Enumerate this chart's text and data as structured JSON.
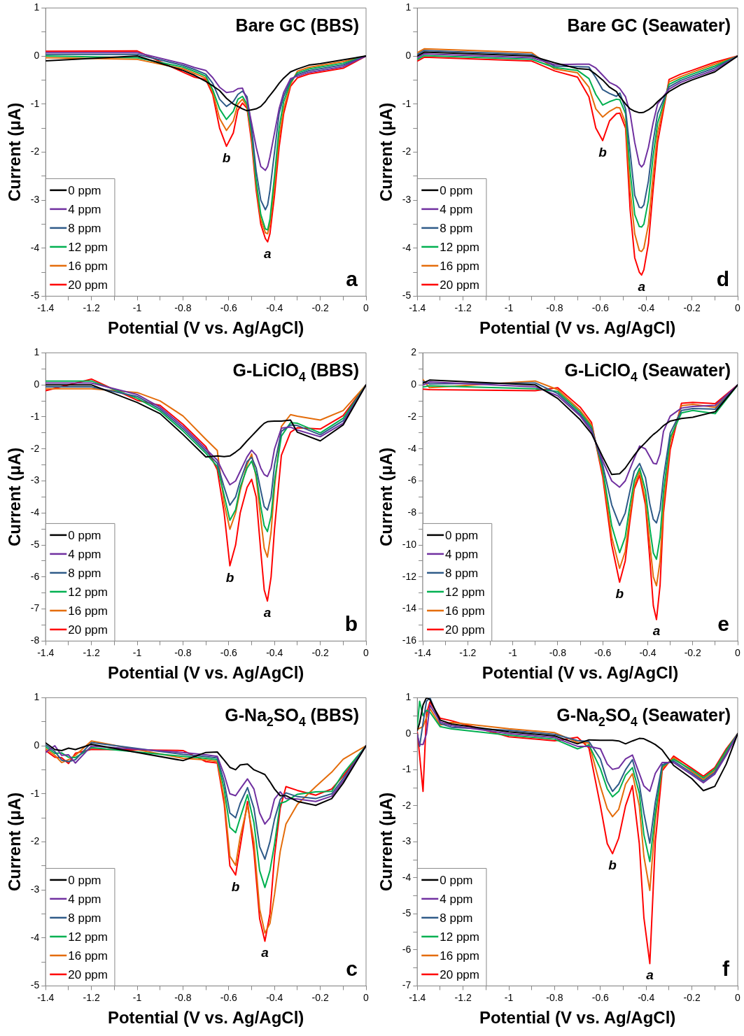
{
  "chart_data": [
    {
      "type": "line",
      "title": "Bare GC (BBS)",
      "xlabel": "Potential (V vs. Ag/AgCl)",
      "ylabel": "Current (μA)",
      "legend": "bottom left",
      "grid": false,
      "line_style": "solid",
      "xlim": [
        -1.4,
        0
      ],
      "xticks": [
        -1.4,
        {
          "value": -1.3,
          "label": null
        },
        -1.2,
        {
          "value": -1.1,
          "label": null
        },
        -1,
        {
          "value": -0.9,
          "label": null
        },
        -0.8,
        {
          "value": -0.7,
          "label": null
        },
        -0.6,
        {
          "value": -0.5,
          "label": null
        },
        -0.4,
        {
          "value": -0.3,
          "label": null
        },
        -0.2,
        {
          "value": -0.1,
          "label": null
        },
        0
      ],
      "ylim": [
        -5,
        1
      ],
      "yticks": [
        1,
        {
          "value": 0.5,
          "label": null
        },
        0,
        {
          "value": -0.5,
          "label": null
        },
        -1,
        {
          "value": -1.5,
          "label": null
        },
        -2,
        {
          "value": -2.5,
          "label": null
        },
        -3,
        {
          "value": -3.5,
          "label": null
        },
        -4,
        {
          "value": -4.5,
          "label": null
        },
        -5
      ],
      "x": [
        -1.4,
        -1.0,
        -0.8,
        -0.75,
        -0.7,
        -0.67,
        -0.64,
        -0.61,
        -0.58,
        -0.56,
        -0.54,
        -0.52,
        -0.5,
        -0.48,
        -0.46,
        -0.44,
        -0.43,
        -0.42,
        -0.4,
        -0.38,
        -0.36,
        -0.33,
        -0.3,
        -0.25,
        -0.2,
        -0.1,
        0
      ],
      "series": [
        {
          "name": "0 ppm",
          "color": "#000000",
          "values": [
            -0.1,
            0,
            -0.3,
            -0.4,
            -0.53,
            -0.62,
            -0.72,
            -0.88,
            -1.0,
            -1.05,
            -1.1,
            -1.14,
            -1.12,
            -1.1,
            -1.05,
            -0.95,
            -0.88,
            -0.82,
            -0.7,
            -0.57,
            -0.46,
            -0.33,
            -0.27,
            -0.19,
            -0.16,
            -0.08,
            0
          ]
        },
        {
          "name": "4 ppm",
          "color": "#7030a0",
          "values": [
            0.07,
            0.07,
            -0.16,
            -0.24,
            -0.3,
            -0.45,
            -0.65,
            -0.76,
            -0.74,
            -0.68,
            -0.67,
            -0.92,
            -1.4,
            -1.9,
            -2.3,
            -2.38,
            -2.3,
            -2.1,
            -1.6,
            -1.1,
            -0.76,
            -0.47,
            -0.42,
            -0.34,
            -0.3,
            -0.22,
            0
          ]
        },
        {
          "name": "8 ppm",
          "color": "#2e5a88",
          "values": [
            0.035,
            0.035,
            -0.195,
            -0.28,
            -0.38,
            -0.57,
            -0.9,
            -1.05,
            -0.95,
            -0.8,
            -0.73,
            -0.85,
            -1.5,
            -2.4,
            -3.0,
            -3.2,
            -3.1,
            -2.8,
            -2.0,
            -1.2,
            -0.84,
            -0.51,
            -0.385,
            -0.305,
            -0.265,
            -0.185,
            0
          ]
        },
        {
          "name": "12 ppm",
          "color": "#00b050",
          "values": [
            0,
            -0.035,
            -0.23,
            -0.32,
            -0.42,
            -0.7,
            -1.1,
            -1.32,
            -1.15,
            -0.9,
            -0.84,
            -1.0,
            -1.6,
            -2.6,
            -3.3,
            -3.6,
            -3.62,
            -3.4,
            -2.5,
            -1.5,
            -0.95,
            -0.55,
            -0.35,
            -0.27,
            -0.23,
            -0.15,
            0
          ]
        },
        {
          "name": "16 ppm",
          "color": "#e46c0a",
          "values": [
            -0.035,
            -0.07,
            -0.265,
            -0.36,
            -0.46,
            -0.75,
            -1.3,
            -1.55,
            -1.35,
            -1.0,
            -0.9,
            -1.05,
            -1.7,
            -2.7,
            -3.4,
            -3.68,
            -3.7,
            -3.5,
            -2.7,
            -1.7,
            -1.1,
            -0.59,
            -0.315,
            -0.235,
            -0.195,
            -0.115,
            0
          ]
        },
        {
          "name": "20 ppm",
          "color": "#ff0000",
          "values": [
            0.1,
            0.105,
            -0.335,
            -0.44,
            -0.49,
            -0.8,
            -1.5,
            -1.88,
            -1.6,
            -1.13,
            -0.98,
            -1.09,
            -1.8,
            -2.8,
            -3.5,
            -3.8,
            -3.87,
            -3.7,
            -2.9,
            -1.9,
            -1.2,
            -0.63,
            -0.455,
            -0.375,
            -0.335,
            -0.255,
            0
          ]
        }
      ],
      "annotations": [
        {
          "text": "b",
          "x": -0.61,
          "y": -1.88
        },
        {
          "text": "a",
          "x": -0.43,
          "y": -3.87
        },
        "a"
      ]
    },
    {
      "type": "line",
      "title": "Bare GC (Seawater)",
      "xlabel": "Potential (V vs. Ag/AgCl)",
      "ylabel": "Current (μA)",
      "legend": "bottom left",
      "grid": false,
      "line_style": "solid",
      "xlim": [
        -1.4,
        0
      ],
      "xticks": [
        -1.4,
        {
          "value": -1.3,
          "label": null
        },
        -1.2,
        {
          "value": -1.1,
          "label": null
        },
        -1,
        {
          "value": -0.9,
          "label": null
        },
        -0.8,
        {
          "value": -0.7,
          "label": null
        },
        -0.6,
        {
          "value": -0.5,
          "label": null
        },
        -0.4,
        {
          "value": -0.3,
          "label": null
        },
        -0.2,
        {
          "value": -0.1,
          "label": null
        },
        0
      ],
      "ylim": [
        -5,
        1
      ],
      "yticks": [
        1,
        {
          "value": 0.5,
          "label": null
        },
        0,
        {
          "value": -0.5,
          "label": null
        },
        -1,
        {
          "value": -1.5,
          "label": null
        },
        -2,
        {
          "value": -2.5,
          "label": null
        },
        -3,
        {
          "value": -3.5,
          "label": null
        },
        -4,
        {
          "value": -4.5,
          "label": null
        },
        -5
      ],
      "x": [
        -1.4,
        -1.37,
        -0.9,
        -0.8,
        -0.7,
        -0.65,
        -0.62,
        -0.59,
        -0.56,
        -0.53,
        -0.515,
        -0.49,
        -0.47,
        -0.45,
        -0.43,
        -0.42,
        -0.41,
        -0.39,
        -0.37,
        -0.35,
        -0.3,
        -0.25,
        -0.2,
        -0.1,
        0
      ],
      "series": [
        {
          "name": "0 ppm",
          "color": "#000000",
          "values": [
            0,
            0.08,
            0,
            -0.14,
            -0.26,
            -0.28,
            -0.38,
            -0.5,
            -0.65,
            -0.74,
            -0.85,
            -1.0,
            -1.1,
            -1.15,
            -1.18,
            -1.18,
            -1.17,
            -1.12,
            -1.05,
            -0.95,
            -0.74,
            -0.6,
            -0.5,
            -0.33,
            0
          ]
        },
        {
          "name": "4 ppm",
          "color": "#7030a0",
          "values": [
            -0.035,
            0.045,
            -0.035,
            -0.18,
            -0.17,
            -0.17,
            -0.25,
            -0.4,
            -0.55,
            -0.62,
            -0.68,
            -0.85,
            -1.2,
            -1.8,
            -2.25,
            -2.31,
            -2.25,
            -1.9,
            -1.4,
            -1.0,
            -0.69,
            -0.55,
            -0.46,
            -0.29,
            0
          ]
        },
        {
          "name": "8 ppm",
          "color": "#2e5a88",
          "values": [
            0.035,
            0.115,
            0.035,
            -0.21,
            -0.22,
            -0.23,
            -0.45,
            -0.7,
            -0.78,
            -0.84,
            -0.77,
            -1.1,
            -2.0,
            -2.9,
            -3.15,
            -3.16,
            -3.1,
            -2.6,
            -1.8,
            -1.2,
            -0.64,
            -0.51,
            -0.42,
            -0.25,
            0
          ]
        },
        {
          "name": "12 ppm",
          "color": "#00b050",
          "values": [
            -0.07,
            0.01,
            -0.07,
            -0.24,
            -0.3,
            -0.47,
            -0.8,
            -1.02,
            -0.95,
            -0.9,
            -0.91,
            -1.2,
            -2.4,
            -3.3,
            -3.55,
            -3.56,
            -3.5,
            -3.0,
            -2.1,
            -1.4,
            -0.59,
            -0.47,
            -0.38,
            -0.21,
            0
          ]
        },
        {
          "name": "16 ppm",
          "color": "#e46c0a",
          "values": [
            0.07,
            0.15,
            0.07,
            -0.27,
            -0.35,
            -0.65,
            -1.1,
            -1.27,
            -1.15,
            -1.07,
            -1.08,
            -1.4,
            -2.8,
            -3.7,
            -4.05,
            -4.07,
            -4.0,
            -3.5,
            -2.5,
            -1.6,
            -0.54,
            -0.43,
            -0.34,
            -0.17,
            0
          ]
        },
        {
          "name": "20 ppm",
          "color": "#ff0000",
          "values": [
            -0.105,
            -0.025,
            -0.105,
            -0.31,
            -0.44,
            -0.85,
            -1.5,
            -1.76,
            -1.35,
            -1.2,
            -1.19,
            -1.5,
            -3.2,
            -4.2,
            -4.5,
            -4.56,
            -4.45,
            -3.9,
            -2.8,
            -1.8,
            -0.49,
            -0.38,
            -0.3,
            -0.13,
            0
          ]
        }
      ],
      "annotations": [
        {
          "text": "b",
          "x": -0.59,
          "y": -1.76
        },
        {
          "text": "a",
          "x": -0.42,
          "y": -4.56
        },
        "d"
      ]
    },
    {
      "type": "line",
      "title": "G-LiClO$_{4}$ (BBS)",
      "xlabel": "Potential (V vs. Ag/AgCl)",
      "ylabel": "Current (μA)",
      "legend": "bottom left",
      "grid": false,
      "line_style": "solid",
      "xlim": [
        -1.4,
        0
      ],
      "xticks": [
        -1.4,
        {
          "value": -1.3,
          "label": null
        },
        -1.2,
        {
          "value": -1.1,
          "label": null
        },
        -1,
        {
          "value": -0.9,
          "label": null
        },
        -0.8,
        {
          "value": -0.7,
          "label": null
        },
        -0.6,
        {
          "value": -0.5,
          "label": null
        },
        -0.4,
        {
          "value": -0.3,
          "label": null
        },
        -0.2,
        {
          "value": -0.1,
          "label": null
        },
        0
      ],
      "ylim": [
        -8,
        1
      ],
      "yticks": [
        1,
        {
          "value": 0.5,
          "label": null
        },
        0,
        {
          "value": -0.5,
          "label": null
        },
        -1,
        {
          "value": -1.5,
          "label": null
        },
        -2,
        {
          "value": -2.5,
          "label": null
        },
        -3,
        {
          "value": -3.5,
          "label": null
        },
        -4,
        {
          "value": -4.5,
          "label": null
        },
        -5,
        {
          "value": -5.5,
          "label": null
        },
        -6,
        {
          "value": -6.5,
          "label": null
        },
        -7,
        {
          "value": -7.5,
          "label": null
        },
        -8
      ],
      "x": [
        -1.4,
        -1.2,
        -1.0,
        -0.9,
        -0.8,
        -0.7,
        -0.65,
        -0.62,
        -0.595,
        -0.57,
        -0.55,
        -0.52,
        -0.5,
        -0.48,
        -0.46,
        -0.445,
        -0.431,
        -0.415,
        -0.4,
        -0.37,
        -0.33,
        -0.3,
        -0.2,
        -0.1,
        0
      ],
      "series": [
        {
          "name": "0 ppm",
          "color": "#000000",
          "values": [
            0,
            0,
            -0.55,
            -0.9,
            -1.55,
            -2.25,
            -2.22,
            -2.24,
            -2.22,
            -2.1,
            -1.99,
            -1.75,
            -1.6,
            -1.45,
            -1.3,
            -1.2,
            -1.15,
            -1.14,
            -1.13,
            -1.13,
            -1.1,
            -1.48,
            -1.75,
            -1.25,
            0
          ]
        },
        {
          "name": "4 ppm",
          "color": "#7030a0",
          "values": [
            0.06,
            0.06,
            -0.3,
            -0.7,
            -1.3,
            -2.0,
            -2.35,
            -2.8,
            -3.12,
            -3.0,
            -2.7,
            -2.25,
            -2.04,
            -2.2,
            -2.6,
            -2.8,
            -2.86,
            -2.6,
            -2.0,
            -1.35,
            -1.32,
            -1.41,
            -1.62,
            -1.2,
            0
          ]
        },
        {
          "name": "8 ppm",
          "color": "#2e5a88",
          "values": [
            -0.06,
            -0.06,
            -0.36,
            -0.76,
            -1.37,
            -2.07,
            -2.45,
            -3.2,
            -3.76,
            -3.5,
            -3.0,
            -2.4,
            -2.26,
            -2.6,
            -3.3,
            -3.8,
            -3.91,
            -3.5,
            -2.5,
            -1.45,
            -1.25,
            -1.27,
            -1.56,
            -1.12,
            0
          ]
        },
        {
          "name": "12 ppm",
          "color": "#00b050",
          "values": [
            0.12,
            0.12,
            -0.42,
            -0.82,
            -1.44,
            -2.14,
            -2.55,
            -3.45,
            -4.23,
            -3.9,
            -3.2,
            -2.6,
            -2.38,
            -2.8,
            -3.8,
            -4.4,
            -4.58,
            -4.1,
            -3.0,
            -1.6,
            -1.18,
            -1.2,
            -1.5,
            -1.04,
            0
          ]
        },
        {
          "name": "16 ppm",
          "color": "#e46c0a",
          "values": [
            -0.12,
            -0.12,
            -0.24,
            -0.5,
            -0.97,
            -1.7,
            -2.05,
            -3.7,
            -4.51,
            -4.0,
            -3.3,
            -2.5,
            -2.16,
            -2.9,
            -4.2,
            -5.1,
            -5.38,
            -4.6,
            -3.2,
            -1.3,
            -0.93,
            -0.98,
            -1.1,
            -0.8,
            0
          ]
        },
        {
          "name": "20 ppm",
          "color": "#ff0000",
          "values": [
            -0.18,
            0.18,
            -0.48,
            -0.64,
            -1.23,
            -1.93,
            -2.65,
            -4.0,
            -5.65,
            -5.0,
            -4.0,
            -3.2,
            -2.95,
            -3.5,
            -5.2,
            -6.4,
            -6.75,
            -6.0,
            -4.5,
            -2.2,
            -1.48,
            -1.34,
            -1.38,
            -0.96,
            0
          ]
        }
      ],
      "annotations": [
        {
          "text": "b",
          "x": -0.595,
          "y": -5.65
        },
        {
          "text": "a",
          "x": -0.431,
          "y": -6.75
        },
        "b"
      ]
    },
    {
      "type": "line",
      "title": "G-LiClO$_{4}$ (Seawater)",
      "xlabel": "Potential (V vs. Ag/AgCl)",
      "ylabel": "Current (μA)",
      "legend": "bottom left",
      "grid": false,
      "line_style": "solid",
      "xlim": [
        -1.4,
        0
      ],
      "xticks": [
        -1.4,
        {
          "value": -1.3,
          "label": null
        },
        -1.2,
        {
          "value": -1.1,
          "label": null
        },
        -1,
        {
          "value": -0.9,
          "label": null
        },
        -0.8,
        {
          "value": -0.7,
          "label": null
        },
        -0.6,
        {
          "value": -0.5,
          "label": null
        },
        -0.4,
        {
          "value": -0.3,
          "label": null
        },
        -0.2,
        {
          "value": -0.1,
          "label": null
        },
        0
      ],
      "ylim": [
        -16,
        2
      ],
      "yticks": [
        2,
        {
          "value": 1,
          "label": null
        },
        0,
        {
          "value": -1,
          "label": null
        },
        -2,
        {
          "value": -3,
          "label": null
        },
        -4,
        {
          "value": -5,
          "label": null
        },
        -6,
        {
          "value": -7,
          "label": null
        },
        -8,
        {
          "value": -9,
          "label": null
        },
        -10,
        {
          "value": -11,
          "label": null
        },
        -12,
        {
          "value": -13,
          "label": null
        },
        -14,
        {
          "value": -15,
          "label": null
        },
        -16
      ],
      "x": [
        -1.4,
        -1.37,
        -0.9,
        -0.8,
        -0.7,
        -0.65,
        -0.6,
        -0.56,
        -0.525,
        -0.5,
        -0.48,
        -0.46,
        -0.436,
        -0.41,
        -0.39,
        -0.375,
        -0.361,
        -0.345,
        -0.33,
        -0.3,
        -0.25,
        -0.2,
        -0.1,
        0
      ],
      "series": [
        {
          "name": "0 ppm",
          "color": "#000000",
          "values": [
            0.1,
            0.3,
            0,
            -0.85,
            -2.18,
            -3.04,
            -4.5,
            -5.6,
            -5.55,
            -5.2,
            -4.8,
            -4.4,
            -3.97,
            -3.6,
            -3.3,
            -3.1,
            -2.95,
            -2.75,
            -2.55,
            -2.26,
            -2.1,
            -2.02,
            -1.68,
            0
          ]
        },
        {
          "name": "4 ppm",
          "color": "#7030a0",
          "values": [
            -0.02,
            0.18,
            -0.12,
            -0.68,
            -1.95,
            -2.9,
            -4.75,
            -6.0,
            -6.39,
            -6.0,
            -5.3,
            -4.6,
            -3.82,
            -4.0,
            -4.5,
            -4.9,
            -4.94,
            -4.3,
            -2.9,
            -1.95,
            -1.45,
            -1.35,
            -1.28,
            0
          ]
        },
        {
          "name": "8 ppm",
          "color": "#2e5a88",
          "values": [
            0.22,
            0.06,
            0.12,
            -0.54,
            -1.85,
            -2.75,
            -5.0,
            -7.5,
            -8.78,
            -8.0,
            -6.7,
            -5.4,
            -4.91,
            -5.8,
            -7.5,
            -8.4,
            -8.62,
            -7.8,
            -5.8,
            -3.0,
            -1.6,
            -1.48,
            -1.52,
            0
          ]
        },
        {
          "name": "12 ppm",
          "color": "#00b050",
          "values": [
            -0.14,
            -0.06,
            -0.24,
            -0.42,
            -1.72,
            -2.62,
            -5.25,
            -8.8,
            -10.48,
            -9.5,
            -7.6,
            -6.0,
            -5.2,
            -6.6,
            -9.0,
            -10.5,
            -10.89,
            -9.5,
            -6.7,
            -3.3,
            -1.75,
            -1.6,
            -1.8,
            0
          ]
        },
        {
          "name": "16 ppm",
          "color": "#e46c0a",
          "values": [
            0.34,
            -0.18,
            0.24,
            -0.3,
            -1.6,
            -2.5,
            -5.5,
            -9.5,
            -11.46,
            -10.4,
            -8.2,
            -6.3,
            -5.4,
            -7.2,
            -10.0,
            -12.0,
            -12.55,
            -11.0,
            -7.5,
            -3.6,
            -1.3,
            -1.22,
            -1.4,
            0
          ]
        },
        {
          "name": "20 ppm",
          "color": "#ff0000",
          "values": [
            -0.26,
            -0.3,
            -0.36,
            -0.18,
            -1.4,
            -2.34,
            -5.75,
            -10.0,
            -12.32,
            -11.0,
            -8.6,
            -6.5,
            -5.65,
            -7.5,
            -11.0,
            -13.8,
            -14.66,
            -12.5,
            -8.0,
            -4.05,
            -1.15,
            -1.1,
            -1.17,
            0
          ]
        }
      ],
      "annotations": [
        {
          "text": "b",
          "x": -0.525,
          "y": -12.32
        },
        {
          "text": "a",
          "x": -0.361,
          "y": -14.66
        },
        "e"
      ]
    },
    {
      "type": "line",
      "title": "G-Na$_{2}$SO$_{4}$ (BBS)",
      "xlabel": "Potential (V vs. Ag/AgCl)",
      "ylabel": "Current (μA)",
      "legend": "bottom left",
      "grid": false,
      "line_style": "solid",
      "xlim": [
        -1.4,
        0
      ],
      "xticks": [
        -1.4,
        {
          "value": -1.3,
          "label": null
        },
        -1.2,
        {
          "value": -1.1,
          "label": null
        },
        -1,
        {
          "value": -0.9,
          "label": null
        },
        -0.8,
        {
          "value": -0.7,
          "label": null
        },
        -0.6,
        {
          "value": -0.5,
          "label": null
        },
        -0.4,
        {
          "value": -0.3,
          "label": null
        },
        -0.2,
        {
          "value": -0.1,
          "label": null
        },
        0
      ],
      "ylim": [
        -5,
        1
      ],
      "yticks": [
        1,
        {
          "value": 0.5,
          "label": null
        },
        0,
        {
          "value": -0.5,
          "label": null
        },
        -1,
        {
          "value": -1.5,
          "label": null
        },
        -2,
        {
          "value": -2.5,
          "label": null
        },
        -3,
        {
          "value": -3.5,
          "label": null
        },
        -4,
        {
          "value": -4.5,
          "label": null
        },
        -5
      ],
      "x": [
        -1.4,
        -1.36,
        -1.33,
        -1.3,
        -1.27,
        -1.2,
        -0.8,
        -0.7,
        -0.65,
        -0.62,
        -0.595,
        -0.57,
        -0.55,
        -0.518,
        -0.49,
        -0.465,
        -0.442,
        -0.42,
        -0.4,
        -0.375,
        -0.35,
        -0.3,
        -0.22,
        -0.15,
        -0.1,
        0
      ],
      "series": [
        {
          "name": "0 ppm",
          "color": "#000000",
          "values": [
            0.06,
            -0.08,
            -0.1,
            -0.05,
            -0.08,
            0.03,
            -0.31,
            -0.14,
            -0.13,
            -0.3,
            -0.45,
            -0.5,
            -0.4,
            -0.38,
            -0.5,
            -0.55,
            -0.6,
            -0.75,
            -0.9,
            -1.04,
            -1.04,
            -1.16,
            -1.24,
            -1.1,
            -0.78,
            0
          ]
        },
        {
          "name": "4 ppm",
          "color": "#7030a0",
          "values": [
            -0.14,
            0,
            -0.2,
            -0.19,
            -0.36,
            -0.005,
            -0.14,
            -0.19,
            -0.22,
            -0.6,
            -1.0,
            -1.04,
            -0.9,
            -0.69,
            -0.9,
            -1.4,
            -1.63,
            -1.5,
            -1.11,
            -0.96,
            -1.1,
            -1.11,
            -1.16,
            -1.05,
            -0.73,
            0
          ]
        },
        {
          "name": "8 ppm",
          "color": "#2e5a88",
          "values": [
            0.02,
            -0.12,
            -0.3,
            -0.33,
            -0.29,
            0.065,
            -0.18,
            -0.225,
            -0.255,
            -0.75,
            -1.4,
            -1.5,
            -1.2,
            -0.87,
            -1.3,
            -2.1,
            -2.36,
            -2.0,
            -1.53,
            -1.12,
            -0.98,
            -1.06,
            -1.1,
            -1.0,
            -0.68,
            0
          ]
        },
        {
          "name": "12 ppm",
          "color": "#00b050",
          "values": [
            -0.02,
            -0.16,
            -0.15,
            -0.24,
            -0.245,
            -0.04,
            -0.22,
            -0.26,
            -0.29,
            -0.9,
            -1.7,
            -1.81,
            -1.5,
            -1.02,
            -1.6,
            -2.6,
            -2.95,
            -2.6,
            -2.05,
            -1.2,
            -1.16,
            -1.01,
            -0.96,
            -0.95,
            -0.58,
            0
          ]
        },
        {
          "name": "16 ppm",
          "color": "#e46c0a",
          "values": [
            -0.06,
            -0.2,
            -0.35,
            -0.29,
            -0.2,
            0.1,
            -0.26,
            -0.295,
            -0.325,
            -1.1,
            -2.3,
            -2.49,
            -1.9,
            -1.24,
            -2.0,
            -3.4,
            -3.9,
            -3.7,
            -3.1,
            -2.2,
            -1.63,
            -1.22,
            -0.85,
            -0.55,
            -0.28,
            0
          ]
        },
        {
          "name": "20 ppm",
          "color": "#ff0000",
          "values": [
            -0.1,
            -0.24,
            -0.25,
            -0.37,
            -0.155,
            -0.075,
            -0.1,
            -0.33,
            -0.36,
            -1.2,
            -2.5,
            -2.69,
            -2.1,
            -1.16,
            -2.2,
            -3.6,
            -4.07,
            -3.5,
            -2.3,
            -1.3,
            -0.85,
            -0.93,
            -1.03,
            -0.9,
            -0.63,
            0
          ]
        }
      ],
      "annotations": [
        {
          "text": "b",
          "x": -0.57,
          "y": -2.69
        },
        {
          "text": "a",
          "x": -0.442,
          "y": -4.07
        },
        "c"
      ]
    },
    {
      "type": "line",
      "title": "G-Na$_{2}$SO$_{4}$ (Seawater)",
      "xlabel": "Potential (V vs. Ag/AgCl)",
      "ylabel": "Current (μA)",
      "legend": "bottom left",
      "grid": false,
      "line_style": "solid",
      "xlim": [
        -1.4,
        0
      ],
      "xticks": [
        -1.4,
        {
          "value": -1.3,
          "label": null
        },
        -1.2,
        {
          "value": -1.1,
          "label": null
        },
        -1,
        {
          "value": -0.9,
          "label": null
        },
        -0.8,
        {
          "value": -0.7,
          "label": null
        },
        -0.6,
        {
          "value": -0.5,
          "label": null
        },
        -0.4,
        {
          "value": -0.3,
          "label": null
        },
        -0.2,
        {
          "value": -0.1,
          "label": null
        },
        0
      ],
      "ylim": [
        -7,
        1
      ],
      "yticks": [
        1,
        {
          "value": 0.5,
          "label": null
        },
        0,
        {
          "value": -0.5,
          "label": null
        },
        -1,
        {
          "value": -1.5,
          "label": null
        },
        -2,
        {
          "value": -2.5,
          "label": null
        },
        -3,
        {
          "value": -3.5,
          "label": null
        },
        -4,
        {
          "value": -4.5,
          "label": null
        },
        -5,
        {
          "value": -5.5,
          "label": null
        },
        -6,
        {
          "value": -6.5,
          "label": null
        },
        -7
      ],
      "x": [
        -1.4,
        -1.39,
        -1.375,
        -1.36,
        -1.345,
        -1.3,
        -1.25,
        -1.0,
        -0.8,
        -0.7,
        -0.65,
        -0.6,
        -0.57,
        -0.547,
        -0.52,
        -0.49,
        -0.46,
        -0.43,
        -0.41,
        -0.384,
        -0.36,
        -0.33,
        -0.28,
        -0.2,
        -0.15,
        -0.1,
        -0.05,
        0
      ],
      "series": [
        {
          "name": "0 ppm",
          "color": "#000000",
          "values": [
            0.09,
            0.3,
            0.8,
            1.0,
            0.95,
            0.38,
            0.27,
            0.05,
            -0.06,
            -0.28,
            -0.17,
            -0.18,
            -0.18,
            -0.18,
            -0.2,
            -0.28,
            -0.2,
            -0.13,
            -0.14,
            -0.22,
            -0.3,
            -0.45,
            -0.88,
            -1.25,
            -1.58,
            -1.46,
            -0.84,
            0
          ]
        },
        {
          "name": "4 ppm",
          "color": "#7030a0",
          "values": [
            -0.045,
            -0.3,
            -0.3,
            0.0,
            0.8,
            0.33,
            0.225,
            0.005,
            -0.105,
            -0.35,
            -0.35,
            -0.42,
            -0.84,
            -0.99,
            -0.95,
            -0.7,
            -0.59,
            -1.1,
            -1.45,
            -1.6,
            -1.1,
            -0.8,
            -0.8,
            -1.14,
            -1.36,
            -1.12,
            -0.6,
            0
          ]
        },
        {
          "name": "8 ppm",
          "color": "#2e5a88",
          "values": [
            0,
            -0.35,
            0.3,
            0.9,
            1.0,
            0.285,
            0.18,
            0.095,
            -0.015,
            -0.19,
            -0.215,
            -0.7,
            -1.32,
            -1.6,
            -1.4,
            -1.0,
            -0.72,
            -1.4,
            -2.2,
            -3.04,
            -1.9,
            -0.86,
            -0.755,
            -1.095,
            -1.315,
            -1.075,
            -0.555,
            0
          ]
        },
        {
          "name": "12 ppm",
          "color": "#00b050",
          "values": [
            0.2,
            0.9,
            0.5,
            0.65,
            0.6,
            0.195,
            0.135,
            -0.04,
            -0.15,
            -0.42,
            -0.305,
            -0.97,
            -1.53,
            -1.75,
            -1.6,
            -1.15,
            -0.94,
            -1.65,
            -2.8,
            -3.55,
            -2.2,
            -0.91,
            -0.71,
            -1.005,
            -1.225,
            -0.985,
            -0.465,
            0
          ]
        },
        {
          "name": "16 ppm",
          "color": "#e46c0a",
          "values": [
            0.135,
            0.15,
            0.2,
            0.45,
            0.7,
            0.24,
            0.315,
            0.14,
            0.03,
            -0.24,
            -0.26,
            -1.46,
            -2.08,
            -2.3,
            -2.1,
            -1.4,
            -1.11,
            -2.0,
            -3.4,
            -4.35,
            -2.4,
            -0.96,
            -0.665,
            -1.05,
            -1.27,
            -1.03,
            -0.51,
            0
          ]
        },
        {
          "name": "20 ppm",
          "color": "#ff0000",
          "values": [
            0.045,
            -0.6,
            -1.6,
            0.55,
            0.88,
            0.43,
            0.36,
            -0.085,
            -0.195,
            -0.1,
            -0.395,
            -2.0,
            -3.05,
            -3.33,
            -2.9,
            -2.0,
            -1.44,
            -3.05,
            -5.1,
            -6.38,
            -3.0,
            -1.03,
            -0.62,
            -0.96,
            -1.18,
            -0.94,
            -0.42,
            0
          ]
        }
      ],
      "annotations": [
        {
          "text": "b",
          "x": -0.547,
          "y": -3.33
        },
        {
          "text": "a",
          "x": -0.384,
          "y": -6.38
        },
        "f"
      ]
    }
  ]
}
